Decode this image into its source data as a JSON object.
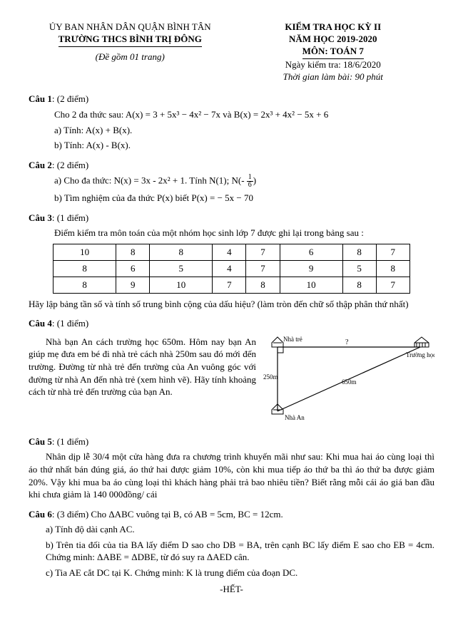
{
  "header": {
    "left_line1": "ỦY BAN NHÂN DÂN QUẬN BÌNH TÂN",
    "left_line2": "TRƯỜNG THCS BÌNH TRỊ ĐÔNG",
    "left_sub": "(Đề gồm 01 trang)",
    "right_line1": "KIỂM TRA HỌC KỲ II",
    "right_line2": "NĂM HỌC 2019-2020",
    "right_line3": "MÔN: TOÁN 7",
    "right_sub1": "Ngày kiểm tra: 18/6/2020",
    "right_sub2": "Thời gian làm bài: 90 phút"
  },
  "q1": {
    "title": "Câu 1",
    "points": "(2 điểm)",
    "given": "Cho 2 đa thức sau: A(x) = 3 + 5x³ − 4x² − 7x  và  B(x) = 2x³ + 4x² − 5x + 6",
    "a": "a) Tính: A(x) + B(x).",
    "b": "b) Tính: A(x) - B(x)."
  },
  "q2": {
    "title": "Câu 2",
    "points": "(2 điểm)",
    "a_pre": "a) Cho đa thức: N(x) = 3x - 2x²  + 1. Tính N(1); N(- ",
    "a_post": ")",
    "frac_n": "1",
    "frac_d": "6",
    "b": "b) Tìm nghiệm của đa thức P(x) biết P(x) = − 5x − 70"
  },
  "q3": {
    "title": "Câu 3",
    "points": "(1 điểm)",
    "intro": "Điểm kiểm tra môn toán của một nhóm học sinh lớp 7 được ghi lại trong bảng sau :",
    "table": [
      [
        "10",
        "8",
        "8",
        "4",
        "7",
        "6",
        "8",
        "7"
      ],
      [
        "8",
        "6",
        "5",
        "4",
        "7",
        "9",
        "5",
        "8"
      ],
      [
        "8",
        "9",
        "10",
        "7",
        "8",
        "10",
        "8",
        "7"
      ]
    ],
    "after": "Hãy lập bảng tần số và tính số trung bình cộng của dấu hiệu? (làm tròn đến chữ số thập phân thứ nhất)"
  },
  "q4": {
    "title": "Câu 4",
    "points": "(1 điểm)",
    "text": "Nhà bạn An cách trường học 650m. Hôm nay bạn An giúp mẹ đưa em bé đi nhà trẻ cách nhà 250m sau đó mới đến trường. Đường từ nhà trẻ đến trường của An vuông góc với đường từ nhà An đến nhà trẻ (xem hình vẽ). Hãy tính khoảng cách từ nhà trẻ đến trường của bạn An.",
    "fig": {
      "label_nhatre": "Nhà trẻ",
      "label_truong": "Trường học",
      "label_nhaan": "Nhà An",
      "label_q": "?",
      "label_250": "250m",
      "label_650": "650m"
    }
  },
  "q5": {
    "title": "Câu 5",
    "points": "(1 điểm)",
    "text": "Nhân dịp lễ 30/4  một cửa hàng đưa ra chương trình khuyến mãi như sau: Khi mua hai áo cùng loại thì áo thứ nhất bán đúng giá, áo thứ hai được giảm 10%, còn khi mua tiếp áo thứ ba thì áo thứ ba được giảm 20%. Vậy khi mua ba áo cùng loại thì khách hàng phải trả bao nhiêu tiền? Biết rằng mỗi cái áo giá ban đầu khi chưa giảm  là 140 000đồng/ cái"
  },
  "q6": {
    "title": "Câu 6",
    "points": "(3 điểm) Cho ΔABC vuông tại B, có AB = 5cm, BC = 12cm.",
    "a": "a)  Tính độ dài cạnh AC.",
    "b": "b)  Trên tia đối của tia BA lấy điểm D sao cho DB = BA, trên cạnh BC lấy điểm E sao cho EB = 4cm. Chứng minh: ΔABE = ΔDBE, từ đó suy ra ΔAED cân.",
    "c": "c)  Tia AE cắt DC tại K. Chứng minh: K là trung điểm của đoạn DC."
  },
  "end": "-HẾT-"
}
